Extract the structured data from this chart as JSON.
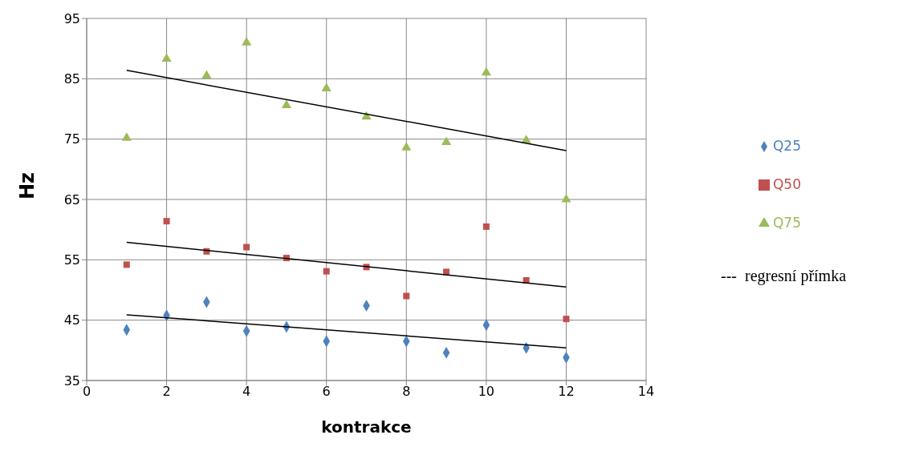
{
  "chart_data": {
    "type": "scatter",
    "xlabel": "kontrakce",
    "ylabel": "Hz",
    "xlim": [
      0,
      14
    ],
    "xticks": [
      0,
      2,
      4,
      6,
      8,
      10,
      12,
      14
    ],
    "ylim": [
      35,
      95
    ],
    "yticks": [
      35,
      45,
      55,
      65,
      75,
      85,
      95
    ],
    "grid": true,
    "legend": "right",
    "annotations": [
      "---  regresní přímka"
    ],
    "series": [
      {
        "name": "Q25",
        "color": "#4f81bd",
        "marker": "diamond",
        "x": [
          1,
          2,
          3,
          4,
          5,
          6,
          7,
          8,
          9,
          10,
          11,
          12
        ],
        "values": [
          43.4,
          45.8,
          48,
          43.2,
          43.9,
          41.5,
          47.4,
          41.5,
          39.6,
          44.2,
          40.4,
          38.8
        ]
      },
      {
        "name": "Q50",
        "color": "#c0504d",
        "marker": "square",
        "x": [
          1,
          2,
          3,
          4,
          5,
          6,
          7,
          8,
          9,
          10,
          11,
          12
        ],
        "values": [
          54.2,
          61.4,
          56.4,
          57.1,
          55.3,
          53.1,
          53.8,
          49,
          53,
          60.5,
          51.6,
          45.2
        ]
      },
      {
        "name": "Q75",
        "color": "#9bbb59",
        "marker": "triangle",
        "x": [
          1,
          2,
          3,
          4,
          5,
          6,
          7,
          8,
          9,
          10,
          11,
          12
        ],
        "values": [
          75.2,
          88.3,
          85.5,
          91,
          80.6,
          83.4,
          78.7,
          73.6,
          74.5,
          86,
          74.8,
          65
        ]
      },
      {
        "type": "line",
        "color": "#000000",
        "marker": "none",
        "x": [
          1,
          12
        ],
        "values": [
          45.9,
          40.4
        ]
      },
      {
        "type": "line",
        "color": "#000000",
        "marker": "none",
        "x": [
          1,
          12
        ],
        "values": [
          57.9,
          50.5
        ]
      },
      {
        "type": "line",
        "color": "#000000",
        "marker": "none",
        "x": [
          1,
          12
        ],
        "values": [
          86.4,
          73.1
        ]
      }
    ]
  }
}
